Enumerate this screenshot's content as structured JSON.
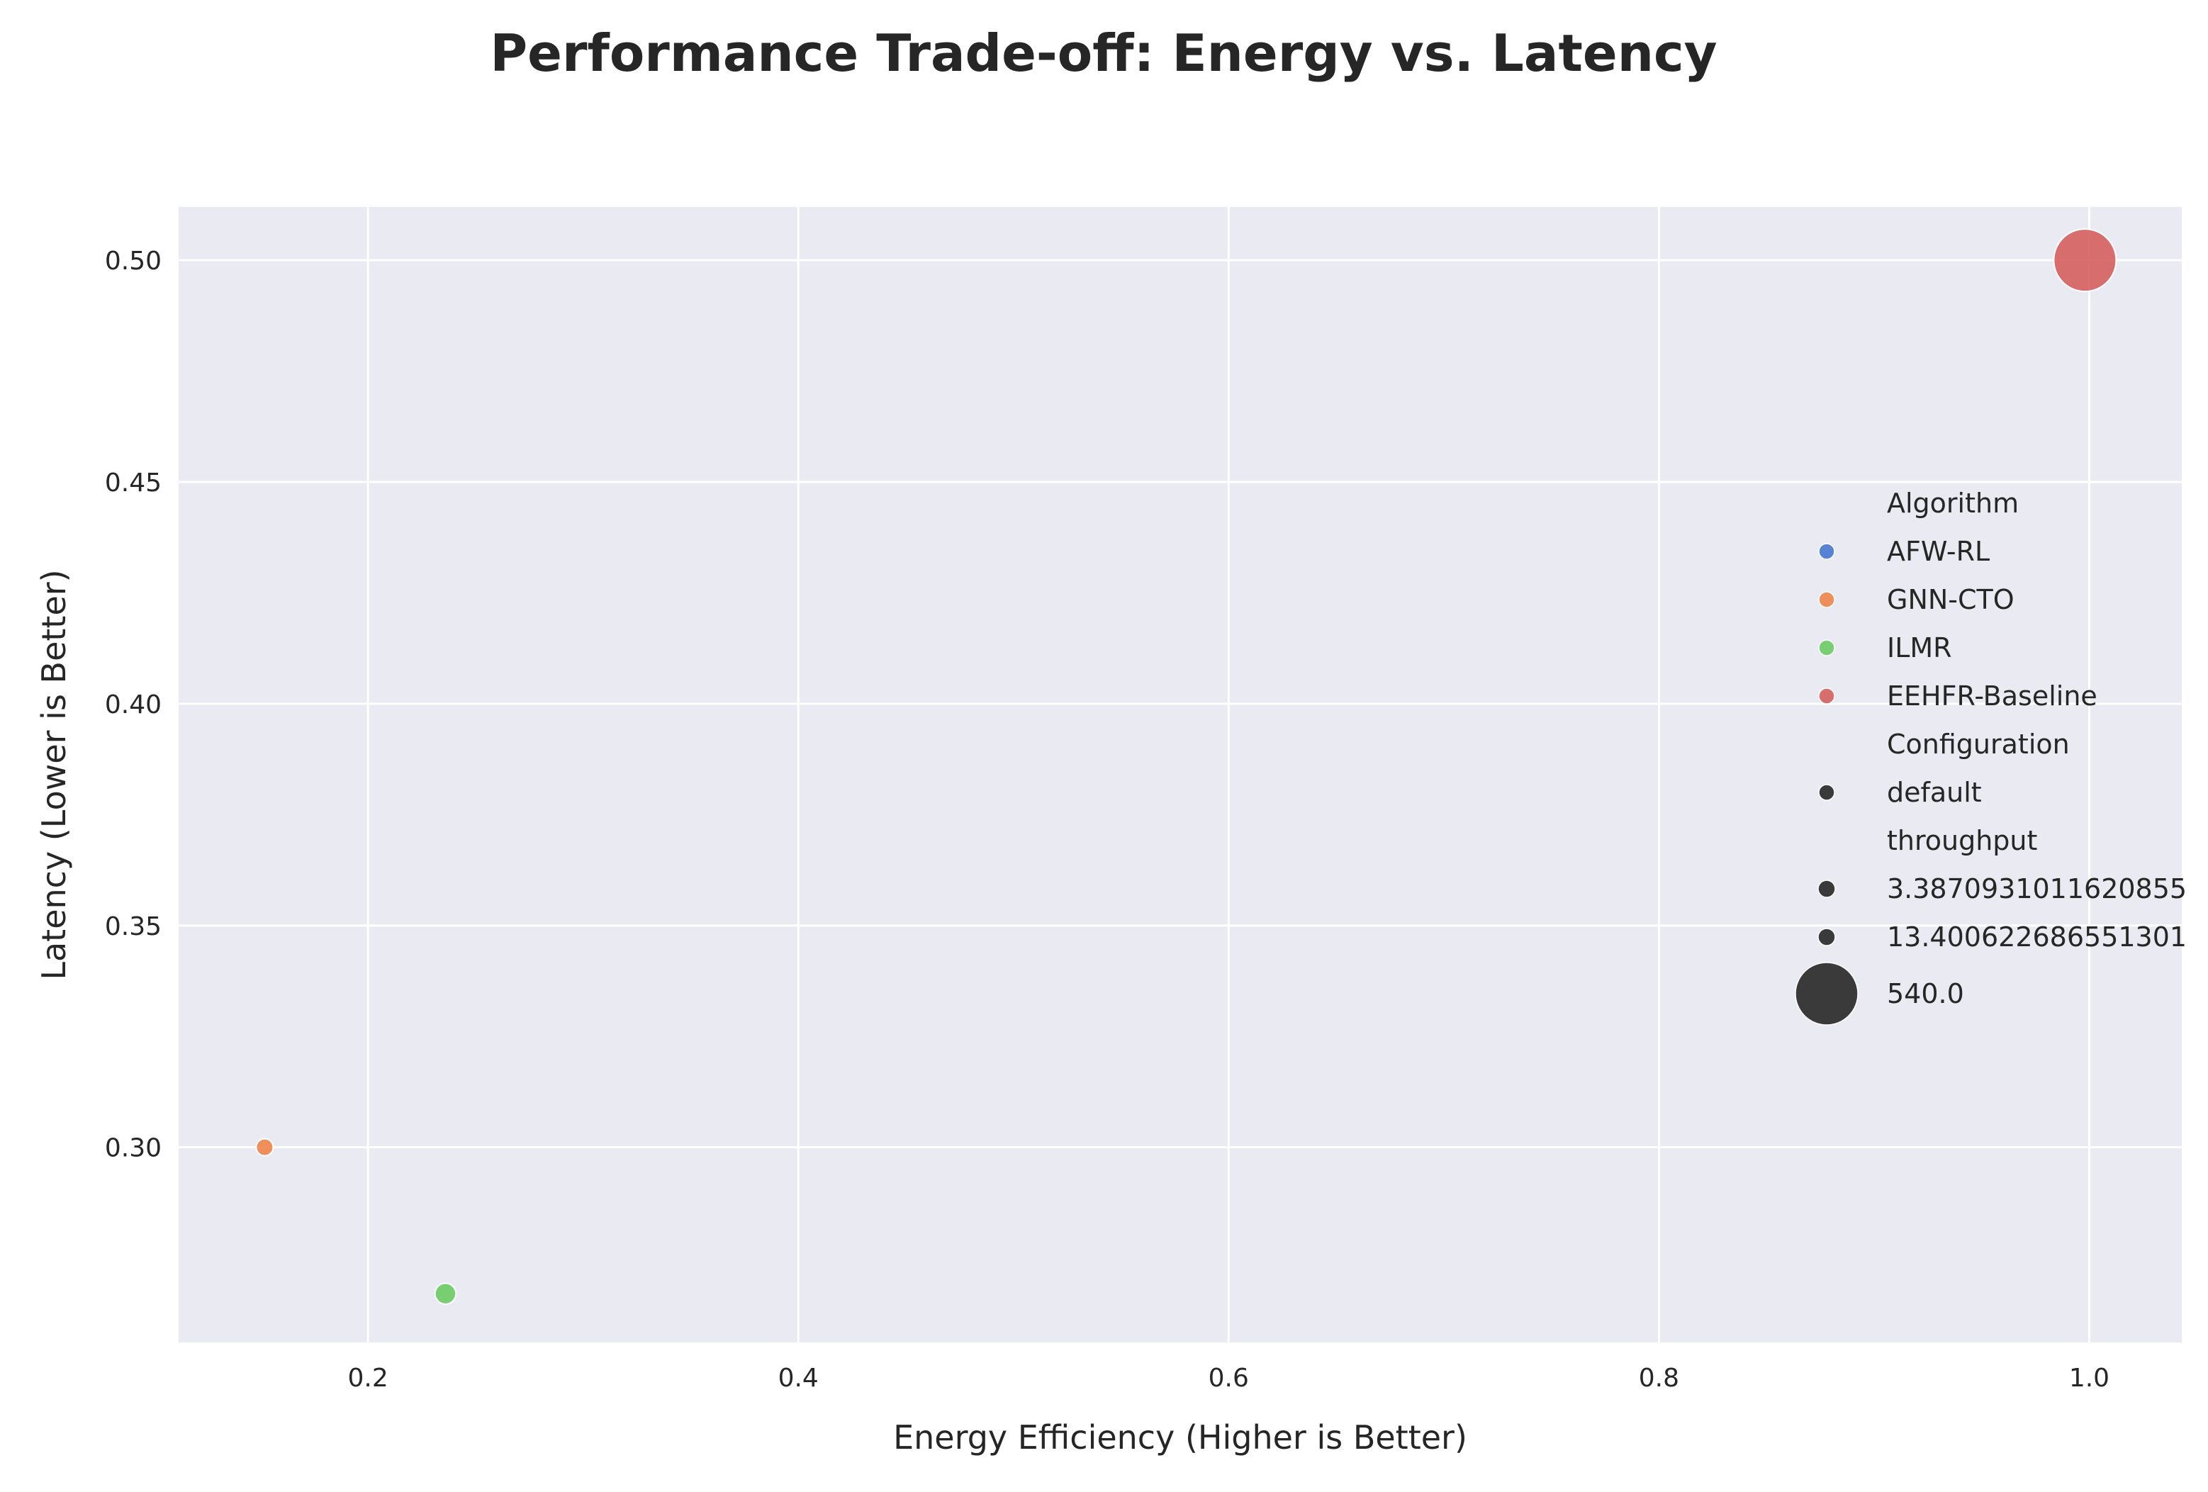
{
  "chart_data": {
    "type": "scatter",
    "title": "Performance Trade-off: Energy vs. Latency",
    "xlabel": "Energy Efficiency (Higher is Better)",
    "ylabel": "Latency (Lower is Better)",
    "xlim": [
      0.112,
      1.043
    ],
    "ylim": [
      0.256,
      0.512
    ],
    "xticks": [
      0.2,
      0.4,
      0.6,
      0.8,
      1.0
    ],
    "xtick_labels": [
      "0.2",
      "0.4",
      "0.6",
      "0.8",
      "1.0"
    ],
    "yticks": [
      0.3,
      0.35,
      0.4,
      0.45,
      0.5
    ],
    "ytick_labels": [
      "0.30",
      "0.35",
      "0.40",
      "0.45",
      "0.50"
    ],
    "grid": true,
    "background": "#eaeaf2",
    "legend_position": "right",
    "size_field": "throughput",
    "points": [
      {
        "algorithm": "GNN-CTO",
        "configuration": "default",
        "x": 0.152,
        "y": 0.3,
        "throughput": 3.3870931011620855,
        "color": "#ee854a"
      },
      {
        "algorithm": "ILMR",
        "configuration": "default",
        "x": 0.236,
        "y": 0.267,
        "throughput": 13.400622686551301,
        "color": "#6acc64"
      },
      {
        "algorithm": "EEHFR-Baseline",
        "configuration": "default",
        "x": 0.998,
        "y": 0.5,
        "throughput": 540.0,
        "color": "#d65f5f"
      }
    ],
    "legend": {
      "hue_title": "Algorithm",
      "hue_entries": [
        {
          "label": "AFW-RL",
          "color": "#4878d0"
        },
        {
          "label": "GNN-CTO",
          "color": "#ee854a"
        },
        {
          "label": "ILMR",
          "color": "#6acc64"
        },
        {
          "label": "EEHFR-Baseline",
          "color": "#d65f5f"
        }
      ],
      "style_title": "Configuration",
      "style_entries": [
        {
          "label": "default",
          "color": "#3a3a3a"
        }
      ],
      "size_title": "throughput",
      "size_entries": [
        {
          "label": "3.3870931011620855",
          "value": 3.3870931011620855
        },
        {
          "label": "13.400622686551301",
          "value": 13.400622686551301
        },
        {
          "label": "540.0",
          "value": 540.0
        }
      ]
    }
  }
}
